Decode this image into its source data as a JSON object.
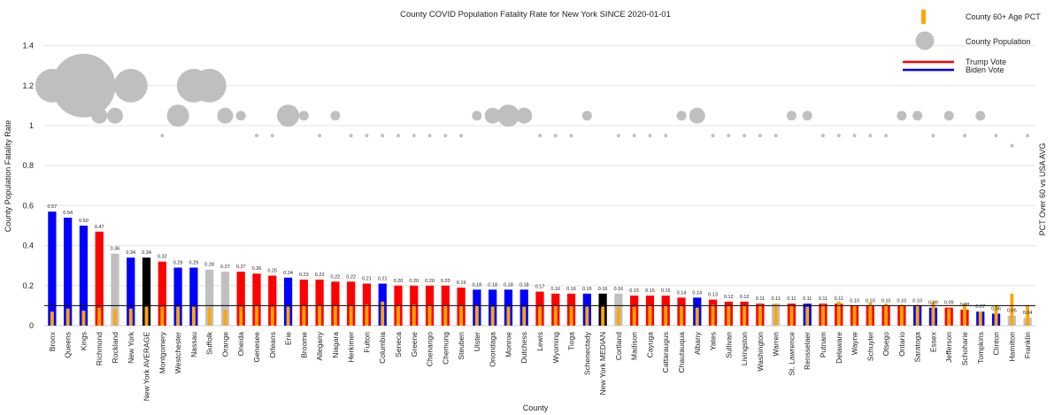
{
  "chart_data": {
    "type": "bar",
    "title": "County COVID Population Fatality Rate for New York SINCE 2020-01-01",
    "xlabel": "County",
    "ylabel": "County Population Fatality Rate",
    "ylabel_right": "PCT Over 60 vs USA AVG",
    "ylim": [
      0,
      1.5
    ],
    "yticks": [
      0,
      0.2,
      0.4,
      0.6,
      0.8,
      1,
      1.2,
      1.4
    ],
    "ytick_labels": [
      "0",
      "0.2",
      "0.4",
      "0.6",
      "0.8",
      "1",
      "1.2",
      "1.4"
    ],
    "reference_line": 0.1,
    "legend": {
      "age": "County 60+ Age PCT",
      "population": "County Population",
      "trump": "Trump Vote",
      "biden": "Biden Vote"
    },
    "colors": {
      "trump": "#ff0000",
      "biden": "#0000ff",
      "average": "#000000",
      "median": "#000000",
      "mixed": "#c0c0c0",
      "age": "#ffa500",
      "bubble": "#bfbfbf"
    },
    "bubble_sizes": {
      "xl": 36,
      "l": 19,
      "m": 12.5,
      "s": 9,
      "xs": 5.5,
      "t": 2
    },
    "categories": [
      "Bronx",
      "Queens",
      "Kings",
      "Richmond",
      "Rockland",
      "New York",
      "New York AVERAGE",
      "Montgomery",
      "Westchester",
      "Nassau",
      "Suffolk",
      "Orange",
      "Oneida",
      "Genesee",
      "Orleans",
      "Erie",
      "Broome",
      "Allegany",
      "Niagara",
      "Herkimer",
      "Fulton",
      "Columbia",
      "Seneca",
      "Greene",
      "Chenango",
      "Chemung",
      "Steuben",
      "Ulster",
      "Onondaga",
      "Monroe",
      "Dutchess",
      "Lewis",
      "Wyoming",
      "Tioga",
      "Schenectady",
      "New York MEDIAN",
      "Cortland",
      "Madison",
      "Cayuga",
      "Cattaraugus",
      "Chautauqua",
      "Albany",
      "Yates",
      "Sullivan",
      "Livingston",
      "Washington",
      "Warren",
      "St. Lawrence",
      "Rensselaer",
      "Putnam",
      "Delaware",
      "Wayne",
      "Schuyler",
      "Otsego",
      "Ontario",
      "Saratoga",
      "Essex",
      "Jefferson",
      "Schoharie",
      "Tompkins",
      "Clinton",
      "Hamilton",
      "Franklin"
    ],
    "values": [
      0.57,
      0.54,
      0.5,
      0.47,
      0.36,
      0.34,
      0.34,
      0.32,
      0.29,
      0.29,
      0.28,
      0.27,
      0.27,
      0.26,
      0.25,
      0.24,
      0.23,
      0.23,
      0.22,
      0.22,
      0.21,
      0.21,
      0.2,
      0.2,
      0.2,
      0.2,
      0.19,
      0.18,
      0.18,
      0.18,
      0.18,
      0.17,
      0.16,
      0.16,
      0.16,
      0.16,
      0.16,
      0.15,
      0.15,
      0.15,
      0.14,
      0.14,
      0.13,
      0.12,
      0.12,
      0.11,
      0.11,
      0.11,
      0.11,
      0.11,
      0.11,
      0.1,
      0.1,
      0.1,
      0.1,
      0.1,
      0.09,
      0.09,
      0.08,
      0.07,
      0.06,
      0.05,
      0.04
    ],
    "value_labels": [
      "0.57",
      "0.54",
      "0.50",
      "0.47",
      "0.36",
      "0.34",
      "0.34",
      "0.32",
      "0.29",
      "0.29",
      "0.28",
      "0.27",
      "0.27",
      "0.26",
      "0.25",
      "0.24",
      "0.23",
      "0.23",
      "0.22",
      "0.22",
      "0.21",
      "0.21",
      "0.20",
      "0.20",
      "0.20",
      "0.20",
      "0.19",
      "0.18",
      "0.18",
      "0.18",
      "0.18",
      "0.17",
      "0.16",
      "0.16",
      "0.16",
      "0.16",
      "0.16",
      "0.15",
      "0.15",
      "0.15",
      "0.14",
      "0.14",
      "0.13",
      "0.12",
      "0.12",
      "0.11",
      "0.11",
      "0.11",
      "0.11",
      "0.11",
      "0.11",
      "0.10",
      "0.10",
      "0.10",
      "0.10",
      "0.10",
      "0.09",
      "0.09",
      "0.08",
      "0.07",
      "0.06",
      "0.05",
      "0.04"
    ],
    "vote": [
      "biden",
      "biden",
      "biden",
      "trump",
      "mixed",
      "biden",
      "average",
      "trump",
      "biden",
      "biden",
      "mixed",
      "mixed",
      "trump",
      "trump",
      "trump",
      "biden",
      "trump",
      "trump",
      "trump",
      "trump",
      "trump",
      "biden",
      "trump",
      "trump",
      "trump",
      "trump",
      "trump",
      "biden",
      "biden",
      "biden",
      "biden",
      "trump",
      "trump",
      "trump",
      "biden",
      "median",
      "mixed",
      "trump",
      "trump",
      "trump",
      "trump",
      "biden",
      "trump",
      "trump",
      "trump",
      "trump",
      "mixed",
      "trump",
      "biden",
      "trump",
      "trump",
      "trump",
      "trump",
      "trump",
      "trump",
      "biden",
      "biden",
      "trump",
      "trump",
      "biden",
      "biden",
      "mixed",
      "mixed"
    ],
    "age_pct": [
      0.07,
      0.085,
      0.075,
      0.09,
      0.085,
      0.085,
      0.095,
      0.095,
      0.095,
      0.095,
      0.09,
      0.08,
      0.095,
      0.1,
      0.095,
      0.095,
      0.1,
      0.1,
      0.1,
      0.1,
      0.105,
      0.12,
      0.1,
      0.105,
      0.1,
      0.1,
      0.1,
      0.1,
      0.095,
      0.095,
      0.095,
      0.095,
      0.1,
      0.1,
      0.095,
      0.095,
      0.09,
      0.095,
      0.1,
      0.1,
      0.1,
      0.09,
      0.105,
      0.1,
      0.1,
      0.105,
      0.11,
      0.1,
      0.095,
      0.105,
      0.12,
      0.1,
      0.115,
      0.11,
      0.105,
      0.105,
      0.12,
      0.085,
      0.11,
      0.07,
      0.1,
      0.16,
      0.1
    ],
    "bubble_y": [
      1.2,
      1.2,
      1.2,
      1.05,
      1.05,
      1.2,
      null,
      0.95,
      1.05,
      1.2,
      1.2,
      1.05,
      1.05,
      0.95,
      0.95,
      1.05,
      1.05,
      0.95,
      1.05,
      0.95,
      0.95,
      0.95,
      0.95,
      0.95,
      0.95,
      0.95,
      0.95,
      1.05,
      1.05,
      1.05,
      1.05,
      0.95,
      0.95,
      0.95,
      1.05,
      null,
      0.95,
      0.95,
      0.95,
      0.95,
      1.05,
      1.05,
      0.95,
      0.95,
      0.95,
      0.95,
      0.95,
      1.05,
      1.05,
      0.95,
      0.95,
      0.95,
      0.95,
      0.95,
      1.05,
      1.05,
      0.95,
      1.05,
      0.95,
      1.05,
      0.95,
      0.9,
      0.95
    ],
    "bubble_size": [
      "l",
      "l",
      "xl",
      "s",
      "s",
      "l",
      null,
      "t",
      "m",
      "l",
      "l",
      "s",
      "xs",
      "t",
      "t",
      "m",
      "xs",
      "t",
      "xs",
      "t",
      "t",
      "t",
      "t",
      "t",
      "t",
      "t",
      "t",
      "xs",
      "s",
      "m",
      "s",
      "t",
      "t",
      "t",
      "xs",
      null,
      "t",
      "t",
      "t",
      "t",
      "xs",
      "s",
      "t",
      "t",
      "t",
      "t",
      "t",
      "xs",
      "xs",
      "t",
      "t",
      "t",
      "t",
      "t",
      "xs",
      "xs",
      "t",
      "xs",
      "t",
      "xs",
      "t",
      "t",
      "t"
    ]
  }
}
